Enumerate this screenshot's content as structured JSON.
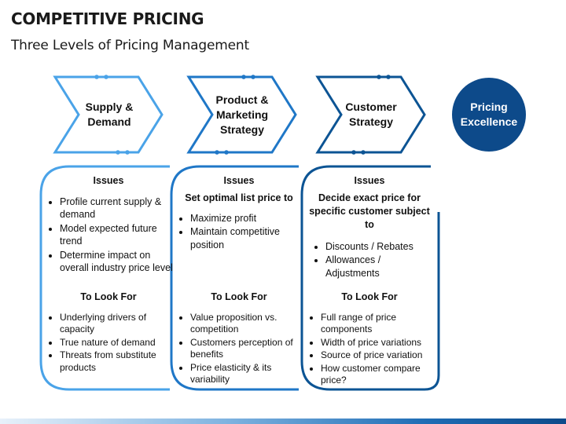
{
  "header": {
    "title": "COMPETITIVE PRICING",
    "subtitle": "Three Levels of Pricing Management"
  },
  "chevrons": [
    {
      "label": "Supply & Demand",
      "color": "#4aa3e8"
    },
    {
      "label": "Product & Marketing Strategy",
      "color": "#1f77c7"
    },
    {
      "label": "Customer Strategy",
      "color": "#0c5494"
    }
  ],
  "goal": {
    "label": "Pricing Excellence",
    "color": "#0d4a8a"
  },
  "columns": [
    {
      "issues_heading": "Issues",
      "issues_lead": "",
      "issues": [
        "Profile current supply & demand",
        "Model expected future trend",
        "Determine impact on overall industry price level"
      ],
      "look_heading": "To Look For",
      "look": [
        "Underlying drivers of capacity",
        "True nature of demand",
        "Threats from substitute products"
      ]
    },
    {
      "issues_heading": "Issues",
      "issues_lead": "Set optimal list price to",
      "issues": [
        "Maximize profit",
        "Maintain competitive position"
      ],
      "look_heading": "To Look For",
      "look": [
        "Value proposition vs. competition",
        "Customers perception of benefits",
        "Price elasticity & its variability"
      ]
    },
    {
      "issues_heading": "Issues",
      "issues_lead": "Decide exact price for specific customer subject to",
      "issues": [
        "Discounts / Rebates",
        "Allowances / Adjustments"
      ],
      "look_heading": "To Look For",
      "look": [
        "Full range of price components",
        "Width of price variations",
        "Source of price variation",
        "How customer compare price?"
      ]
    }
  ]
}
